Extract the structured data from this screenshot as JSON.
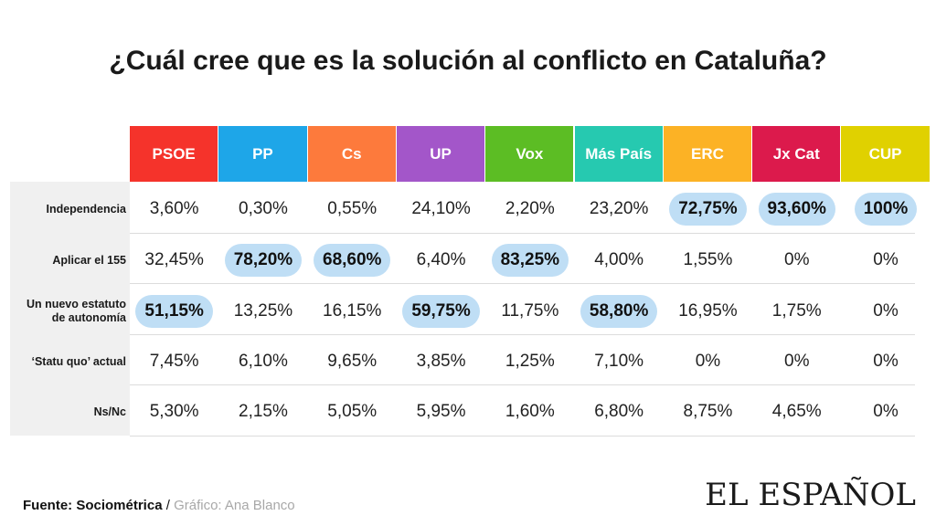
{
  "title": "¿Cuál cree que es la solución al conflicto en Cataluña?",
  "chart_data": {
    "type": "table",
    "title": "¿Cuál cree que es la solución al conflicto en Cataluña?",
    "columns": [
      {
        "label": "PSOE",
        "color": "#f5332b"
      },
      {
        "label": "PP",
        "color": "#1ea6e8"
      },
      {
        "label": "Cs",
        "color": "#fd7a3c"
      },
      {
        "label": "UP",
        "color": "#a356c9"
      },
      {
        "label": "Vox",
        "color": "#5cbd24"
      },
      {
        "label": "Más País",
        "color": "#26c9b0"
      },
      {
        "label": "ERC",
        "color": "#fcb225"
      },
      {
        "label": "Jx Cat",
        "color": "#dc1a4c"
      },
      {
        "label": "CUP",
        "color": "#e0d100"
      }
    ],
    "rows": [
      {
        "label": "Independencia",
        "values": [
          "3,60%",
          "0,30%",
          "0,55%",
          "24,10%",
          "2,20%",
          "23,20%",
          "72,75%",
          "93,60%",
          "100%"
        ],
        "highlight": [
          false,
          false,
          false,
          false,
          false,
          false,
          true,
          true,
          true
        ]
      },
      {
        "label": "Aplicar el 155",
        "values": [
          "32,45%",
          "78,20%",
          "68,60%",
          "6,40%",
          "83,25%",
          "4,00%",
          "1,55%",
          "0%",
          "0%"
        ],
        "highlight": [
          false,
          true,
          true,
          false,
          true,
          false,
          false,
          false,
          false
        ]
      },
      {
        "label": "Un nuevo estatuto de autonomía",
        "values": [
          "51,15%",
          "13,25%",
          "16,15%",
          "59,75%",
          "11,75%",
          "58,80%",
          "16,95%",
          "1,75%",
          "0%"
        ],
        "highlight": [
          true,
          false,
          false,
          true,
          false,
          true,
          false,
          false,
          false
        ]
      },
      {
        "label": "‘Statu quo’ actual",
        "values": [
          "7,45%",
          "6,10%",
          "9,65%",
          "3,85%",
          "1,25%",
          "7,10%",
          "0%",
          "0%",
          "0%"
        ],
        "highlight": [
          false,
          false,
          false,
          false,
          false,
          false,
          false,
          false,
          false
        ]
      },
      {
        "label": "Ns/Nc",
        "values": [
          "5,30%",
          "2,15%",
          "5,05%",
          "5,95%",
          "1,60%",
          "6,80%",
          "8,75%",
          "4,65%",
          "0%"
        ],
        "highlight": [
          false,
          false,
          false,
          false,
          false,
          false,
          false,
          false,
          false
        ]
      }
    ],
    "highlight_color": "#bfdef5"
  },
  "source": {
    "label": "Fuente: Sociométrica",
    "separator": " / ",
    "graphic": "Gráfico: Ana Blanco"
  },
  "logo": "EL ESPAÑOL"
}
